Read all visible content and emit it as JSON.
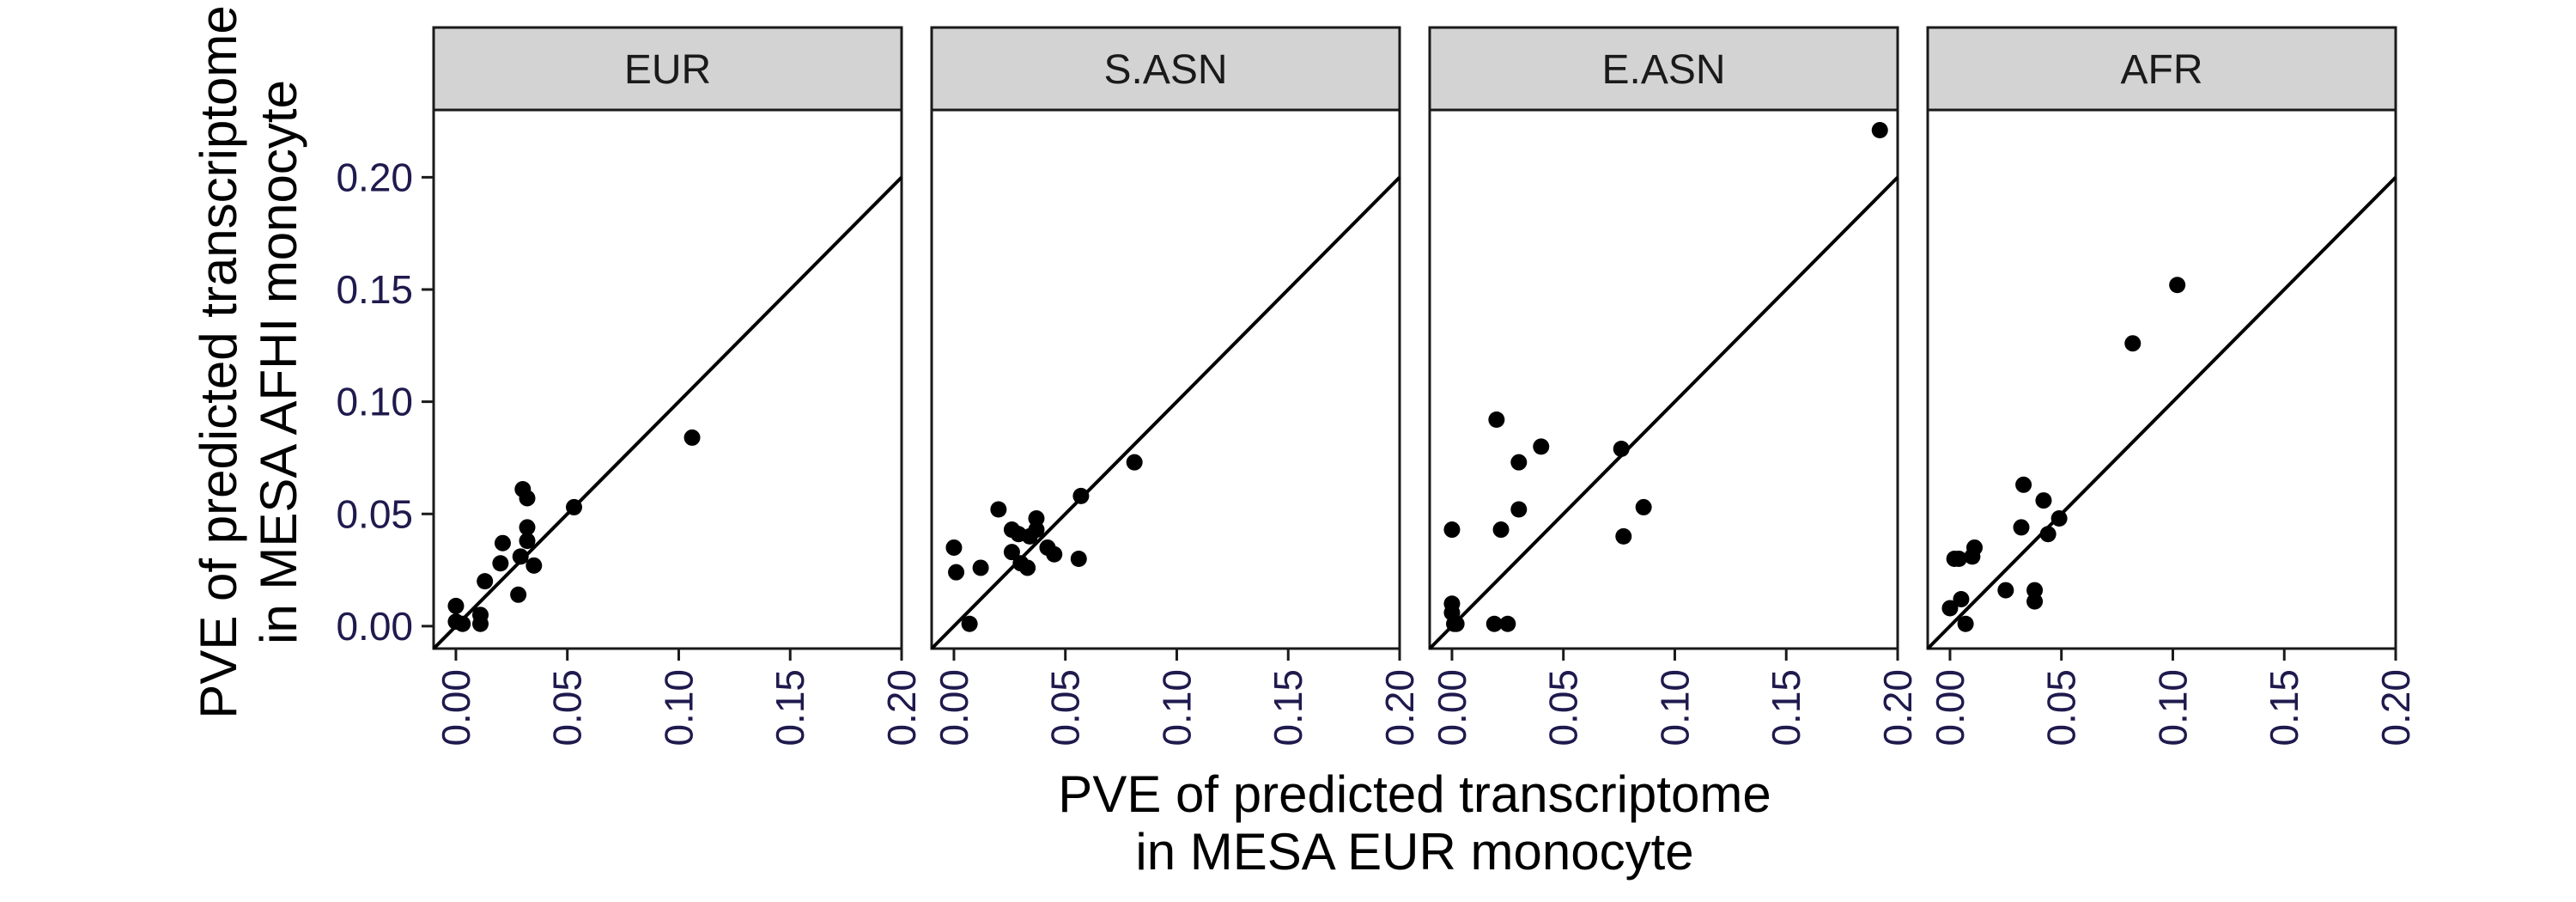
{
  "chart_data": {
    "type": "scatter",
    "xlabel": [
      "PVE of predicted transcriptome",
      "in MESA EUR monocyte"
    ],
    "ylabel": [
      "PVE of predicted transcriptome",
      "in MESA AFHI monocyte"
    ],
    "xlim": [
      -0.01,
      0.2
    ],
    "ylim": [
      -0.01,
      0.23
    ],
    "x_ticks": [
      "0.00",
      "0.05",
      "0.10",
      "0.15",
      "0.20"
    ],
    "x_tick_values": [
      0,
      0.05,
      0.1,
      0.15,
      0.2
    ],
    "y_ticks": [
      "0.00",
      "0.05",
      "0.10",
      "0.15",
      "0.20"
    ],
    "y_tick_values": [
      0,
      0.05,
      0.1,
      0.15,
      0.2
    ],
    "reference_line": "y = x",
    "grid": false,
    "panels": [
      {
        "label": "EUR",
        "points": [
          [
            0.0,
            0.009
          ],
          [
            0.0,
            0.002
          ],
          [
            0.003,
            0.001
          ],
          [
            0.011,
            0.001
          ],
          [
            0.011,
            0.005
          ],
          [
            0.013,
            0.02
          ],
          [
            0.02,
            0.028
          ],
          [
            0.021,
            0.037
          ],
          [
            0.028,
            0.014
          ],
          [
            0.029,
            0.031
          ],
          [
            0.03,
            0.061
          ],
          [
            0.032,
            0.057
          ],
          [
            0.032,
            0.044
          ],
          [
            0.032,
            0.038
          ],
          [
            0.035,
            0.027
          ],
          [
            0.053,
            0.053
          ],
          [
            0.106,
            0.084
          ]
        ]
      },
      {
        "label": "S.ASN",
        "points": [
          [
            0.0,
            0.035
          ],
          [
            0.001,
            0.024
          ],
          [
            0.007,
            0.001
          ],
          [
            0.012,
            0.026
          ],
          [
            0.02,
            0.052
          ],
          [
            0.026,
            0.043
          ],
          [
            0.026,
            0.033
          ],
          [
            0.029,
            0.041
          ],
          [
            0.03,
            0.028
          ],
          [
            0.033,
            0.026
          ],
          [
            0.034,
            0.04
          ],
          [
            0.037,
            0.043
          ],
          [
            0.037,
            0.048
          ],
          [
            0.042,
            0.035
          ],
          [
            0.045,
            0.032
          ],
          [
            0.056,
            0.03
          ],
          [
            0.057,
            0.058
          ],
          [
            0.081,
            0.073
          ]
        ]
      },
      {
        "label": "E.ASN",
        "points": [
          [
            0.0,
            0.043
          ],
          [
            0.0,
            0.01
          ],
          [
            0.0,
            0.006
          ],
          [
            0.001,
            0.001
          ],
          [
            0.002,
            0.001
          ],
          [
            0.019,
            0.001
          ],
          [
            0.02,
            0.092
          ],
          [
            0.022,
            0.043
          ],
          [
            0.025,
            0.001
          ],
          [
            0.03,
            0.073
          ],
          [
            0.03,
            0.052
          ],
          [
            0.04,
            0.08
          ],
          [
            0.076,
            0.079
          ],
          [
            0.077,
            0.04
          ],
          [
            0.086,
            0.053
          ],
          [
            0.192,
            0.221
          ]
        ]
      },
      {
        "label": "AFR",
        "points": [
          [
            0.0,
            0.008
          ],
          [
            0.002,
            0.03
          ],
          [
            0.004,
            0.03
          ],
          [
            0.005,
            0.012
          ],
          [
            0.007,
            0.001
          ],
          [
            0.01,
            0.031
          ],
          [
            0.011,
            0.035
          ],
          [
            0.025,
            0.016
          ],
          [
            0.032,
            0.044
          ],
          [
            0.033,
            0.063
          ],
          [
            0.038,
            0.016
          ],
          [
            0.038,
            0.011
          ],
          [
            0.042,
            0.056
          ],
          [
            0.044,
            0.041
          ],
          [
            0.049,
            0.048
          ],
          [
            0.082,
            0.126
          ],
          [
            0.102,
            0.152
          ]
        ]
      }
    ]
  }
}
